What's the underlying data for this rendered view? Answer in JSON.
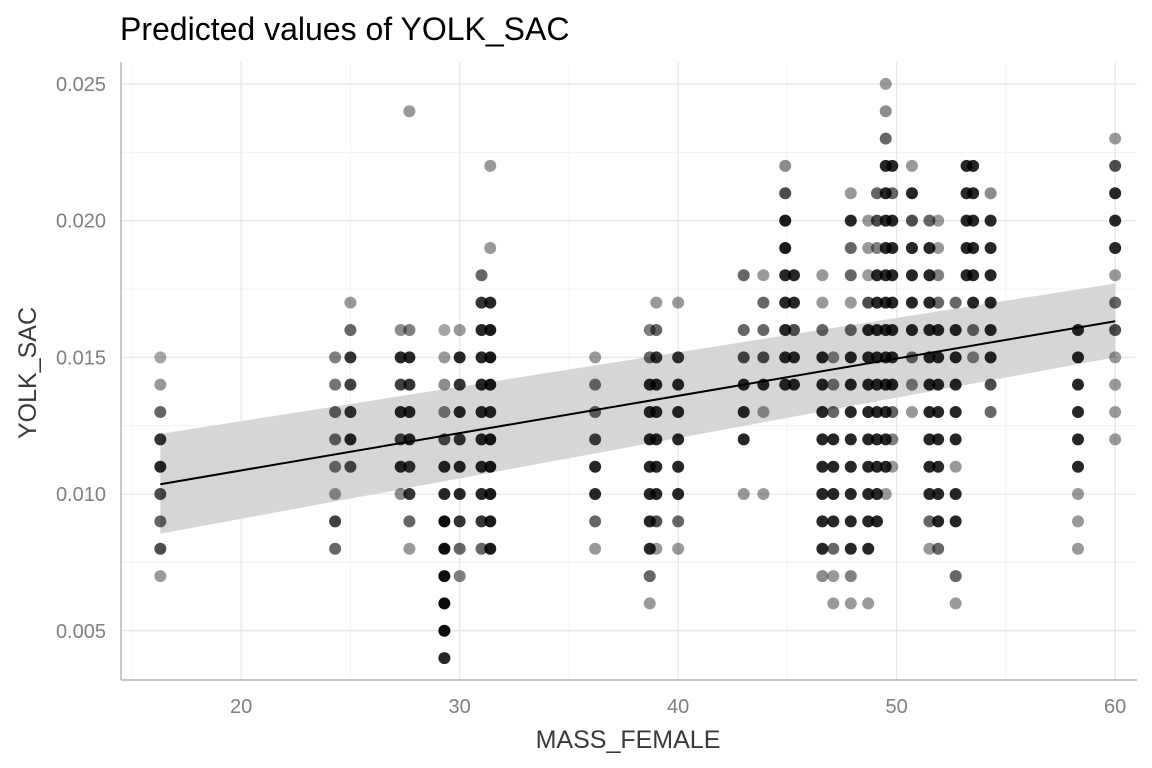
{
  "chart_data": {
    "type": "scatter",
    "title": "Predicted values of YOLK_SAC",
    "xlabel": "MASS_FEMALE",
    "ylabel": "YOLK_SAC",
    "xlim": [
      14.5,
      61.0
    ],
    "ylim": [
      0.0032,
      0.0258
    ],
    "x_ticks": [
      20,
      30,
      40,
      50,
      60
    ],
    "x_tick_labels": [
      "20",
      "30",
      "40",
      "50",
      "60"
    ],
    "y_ticks": [
      0.005,
      0.01,
      0.015,
      0.02,
      0.025
    ],
    "y_tick_labels": [
      "0.005",
      "0.010",
      "0.015",
      "0.020",
      "0.025"
    ],
    "grid": true,
    "point_color": "#000000",
    "band_color": "#d6d6d6",
    "trend": {
      "x": [
        16.3,
        60.0
      ],
      "y": [
        0.01036,
        0.01632
      ],
      "ci_lower": [
        0.00855,
        0.015
      ],
      "ci_upper": [
        0.0122,
        0.0177
      ]
    },
    "columns": [
      {
        "x": 16.3,
        "y": [
          0.007,
          0.008,
          0.009,
          0.01,
          0.011,
          0.012,
          0.013,
          0.014,
          0.015
        ],
        "alpha": [
          0.4,
          0.7,
          0.6,
          0.7,
          0.85,
          0.8,
          0.6,
          0.4,
          0.35
        ]
      },
      {
        "x": 24.3,
        "y": [
          0.008,
          0.009,
          0.01,
          0.011,
          0.012,
          0.013,
          0.014,
          0.015
        ],
        "alpha": [
          0.6,
          0.75,
          0.4,
          0.55,
          0.6,
          0.6,
          0.55,
          0.5
        ]
      },
      {
        "x": 25.0,
        "y": [
          0.011,
          0.012,
          0.013,
          0.014,
          0.015,
          0.016,
          0.017
        ],
        "alpha": [
          0.7,
          0.85,
          0.8,
          0.75,
          0.8,
          0.6,
          0.4
        ]
      },
      {
        "x": 27.3,
        "y": [
          0.01,
          0.011,
          0.012,
          0.013,
          0.014,
          0.015,
          0.016
        ],
        "alpha": [
          0.45,
          0.85,
          0.75,
          0.85,
          0.75,
          0.85,
          0.45
        ]
      },
      {
        "x": 27.7,
        "y": [
          0.008,
          0.009,
          0.01,
          0.011,
          0.012,
          0.013,
          0.014,
          0.015,
          0.016,
          0.024
        ],
        "alpha": [
          0.4,
          0.6,
          0.8,
          0.8,
          0.85,
          0.85,
          0.8,
          0.85,
          0.5,
          0.4
        ]
      },
      {
        "x": 29.3,
        "y": [
          0.004,
          0.005,
          0.006,
          0.007,
          0.008,
          0.009,
          0.01,
          0.011,
          0.012,
          0.013,
          0.014,
          0.015,
          0.016
        ],
        "alpha": [
          0.85,
          0.95,
          0.95,
          0.95,
          0.95,
          0.95,
          0.85,
          0.85,
          0.7,
          0.5,
          0.45,
          0.4,
          0.35
        ]
      },
      {
        "x": 30.0,
        "y": [
          0.007,
          0.008,
          0.009,
          0.01,
          0.011,
          0.012,
          0.013,
          0.014,
          0.015,
          0.016
        ],
        "alpha": [
          0.5,
          0.6,
          0.8,
          0.85,
          0.85,
          0.8,
          0.85,
          0.8,
          0.85,
          0.4
        ]
      },
      {
        "x": 31.0,
        "y": [
          0.008,
          0.009,
          0.01,
          0.011,
          0.012,
          0.013,
          0.014,
          0.015,
          0.016,
          0.017,
          0.018
        ],
        "alpha": [
          0.6,
          0.8,
          0.85,
          0.85,
          0.85,
          0.85,
          0.85,
          0.85,
          0.85,
          0.8,
          0.6
        ]
      },
      {
        "x": 31.4,
        "y": [
          0.008,
          0.009,
          0.01,
          0.011,
          0.012,
          0.013,
          0.014,
          0.015,
          0.016,
          0.017,
          0.019,
          0.022
        ],
        "alpha": [
          0.9,
          0.9,
          0.9,
          0.9,
          0.9,
          0.85,
          0.9,
          0.9,
          0.9,
          0.85,
          0.4,
          0.4
        ]
      },
      {
        "x": 36.2,
        "y": [
          0.008,
          0.009,
          0.01,
          0.011,
          0.012,
          0.013,
          0.014,
          0.015
        ],
        "alpha": [
          0.4,
          0.6,
          0.85,
          0.85,
          0.75,
          0.6,
          0.55,
          0.4
        ]
      },
      {
        "x": 38.7,
        "y": [
          0.006,
          0.007,
          0.008,
          0.009,
          0.01,
          0.011,
          0.012,
          0.013,
          0.014,
          0.015,
          0.016
        ],
        "alpha": [
          0.4,
          0.6,
          0.85,
          0.85,
          0.85,
          0.85,
          0.85,
          0.85,
          0.85,
          0.6,
          0.5
        ]
      },
      {
        "x": 39.0,
        "y": [
          0.008,
          0.009,
          0.01,
          0.011,
          0.012,
          0.013,
          0.014,
          0.015,
          0.016,
          0.017
        ],
        "alpha": [
          0.4,
          0.7,
          0.85,
          0.85,
          0.85,
          0.85,
          0.85,
          0.8,
          0.6,
          0.4
        ]
      },
      {
        "x": 40.0,
        "y": [
          0.008,
          0.009,
          0.01,
          0.011,
          0.012,
          0.013,
          0.014,
          0.015,
          0.017
        ],
        "alpha": [
          0.4,
          0.6,
          0.85,
          0.85,
          0.85,
          0.85,
          0.85,
          0.8,
          0.4
        ]
      },
      {
        "x": 43.0,
        "y": [
          0.01,
          0.012,
          0.013,
          0.014,
          0.015,
          0.016,
          0.018
        ],
        "alpha": [
          0.4,
          0.85,
          0.85,
          0.85,
          0.7,
          0.6,
          0.6
        ]
      },
      {
        "x": 43.9,
        "y": [
          0.01,
          0.013,
          0.014,
          0.015,
          0.016,
          0.017,
          0.018
        ],
        "alpha": [
          0.4,
          0.4,
          0.85,
          0.7,
          0.6,
          0.6,
          0.4
        ]
      },
      {
        "x": 44.9,
        "y": [
          0.014,
          0.015,
          0.016,
          0.017,
          0.018,
          0.019,
          0.02,
          0.021,
          0.022
        ],
        "alpha": [
          0.85,
          0.85,
          0.85,
          0.85,
          0.85,
          0.9,
          0.9,
          0.7,
          0.45
        ]
      },
      {
        "x": 45.3,
        "y": [
          0.014,
          0.015,
          0.016,
          0.017,
          0.018
        ],
        "alpha": [
          0.85,
          0.85,
          0.7,
          0.85,
          0.85
        ]
      },
      {
        "x": 46.6,
        "y": [
          0.007,
          0.008,
          0.009,
          0.01,
          0.011,
          0.012,
          0.013,
          0.014,
          0.015,
          0.016,
          0.017,
          0.018
        ],
        "alpha": [
          0.45,
          0.85,
          0.85,
          0.85,
          0.85,
          0.85,
          0.85,
          0.85,
          0.85,
          0.6,
          0.4,
          0.4
        ]
      },
      {
        "x": 47.1,
        "y": [
          0.006,
          0.007,
          0.008,
          0.009,
          0.01,
          0.011,
          0.012,
          0.013,
          0.014,
          0.015
        ],
        "alpha": [
          0.4,
          0.4,
          0.6,
          0.85,
          0.85,
          0.85,
          0.85,
          0.6,
          0.55,
          0.5
        ]
      },
      {
        "x": 47.9,
        "y": [
          0.006,
          0.007,
          0.008,
          0.009,
          0.01,
          0.011,
          0.012,
          0.013,
          0.014,
          0.015,
          0.016,
          0.017,
          0.018,
          0.019,
          0.02,
          0.021
        ],
        "alpha": [
          0.4,
          0.5,
          0.85,
          0.85,
          0.85,
          0.85,
          0.85,
          0.85,
          0.85,
          0.85,
          0.6,
          0.4,
          0.6,
          0.6,
          0.85,
          0.4
        ]
      },
      {
        "x": 48.7,
        "y": [
          0.006,
          0.008,
          0.009,
          0.01,
          0.011,
          0.012,
          0.013,
          0.014,
          0.015,
          0.016,
          0.017,
          0.018,
          0.019,
          0.02
        ],
        "alpha": [
          0.4,
          0.85,
          0.85,
          0.85,
          0.85,
          0.85,
          0.85,
          0.85,
          0.85,
          0.85,
          0.7,
          0.4,
          0.4,
          0.4
        ]
      },
      {
        "x": 49.1,
        "y": [
          0.009,
          0.01,
          0.011,
          0.012,
          0.013,
          0.014,
          0.015,
          0.016,
          0.017,
          0.018,
          0.019,
          0.02,
          0.021
        ],
        "alpha": [
          0.85,
          0.85,
          0.85,
          0.85,
          0.85,
          0.85,
          0.85,
          0.85,
          0.85,
          0.85,
          0.5,
          0.7,
          0.6
        ]
      },
      {
        "x": 49.5,
        "y": [
          0.01,
          0.011,
          0.012,
          0.013,
          0.014,
          0.015,
          0.016,
          0.017,
          0.018,
          0.019,
          0.02,
          0.021,
          0.022,
          0.023,
          0.024,
          0.025
        ],
        "alpha": [
          0.4,
          0.85,
          0.85,
          0.85,
          0.85,
          0.85,
          0.85,
          0.85,
          0.85,
          0.85,
          0.85,
          0.85,
          0.85,
          0.6,
          0.45,
          0.4
        ]
      },
      {
        "x": 49.8,
        "y": [
          0.011,
          0.012,
          0.013,
          0.014,
          0.015,
          0.016,
          0.017,
          0.018,
          0.019,
          0.02,
          0.021,
          0.022
        ],
        "alpha": [
          0.4,
          0.5,
          0.6,
          0.85,
          0.85,
          0.85,
          0.85,
          0.85,
          0.85,
          0.85,
          0.6,
          0.85
        ]
      },
      {
        "x": 50.7,
        "y": [
          0.013,
          0.014,
          0.015,
          0.016,
          0.017,
          0.018,
          0.019,
          0.02,
          0.021,
          0.022
        ],
        "alpha": [
          0.4,
          0.5,
          0.6,
          0.85,
          0.85,
          0.85,
          0.85,
          0.7,
          0.85,
          0.4
        ]
      },
      {
        "x": 51.5,
        "y": [
          0.008,
          0.009,
          0.01,
          0.011,
          0.012,
          0.013,
          0.014,
          0.015,
          0.016,
          0.017,
          0.018,
          0.019,
          0.02
        ],
        "alpha": [
          0.4,
          0.6,
          0.85,
          0.85,
          0.85,
          0.85,
          0.85,
          0.85,
          0.85,
          0.85,
          0.85,
          0.85,
          0.6
        ]
      },
      {
        "x": 51.9,
        "y": [
          0.008,
          0.009,
          0.01,
          0.011,
          0.012,
          0.013,
          0.014,
          0.015,
          0.016,
          0.017,
          0.018,
          0.019,
          0.02
        ],
        "alpha": [
          0.6,
          0.85,
          0.85,
          0.85,
          0.85,
          0.85,
          0.85,
          0.85,
          0.85,
          0.6,
          0.5,
          0.4,
          0.4
        ]
      },
      {
        "x": 52.7,
        "y": [
          0.006,
          0.007,
          0.009,
          0.01,
          0.011,
          0.012,
          0.013,
          0.014,
          0.015,
          0.016,
          0.017
        ],
        "alpha": [
          0.4,
          0.6,
          0.85,
          0.85,
          0.4,
          0.85,
          0.85,
          0.85,
          0.85,
          0.85,
          0.6
        ]
      },
      {
        "x": 53.2,
        "y": [
          0.018,
          0.019,
          0.02,
          0.021,
          0.022
        ],
        "alpha": [
          0.85,
          0.85,
          0.85,
          0.85,
          0.85
        ]
      },
      {
        "x": 53.5,
        "y": [
          0.015,
          0.016,
          0.017,
          0.018,
          0.019,
          0.02,
          0.021,
          0.022
        ],
        "alpha": [
          0.5,
          0.6,
          0.85,
          0.85,
          0.85,
          0.85,
          0.85,
          0.85
        ]
      },
      {
        "x": 54.3,
        "y": [
          0.013,
          0.014,
          0.015,
          0.016,
          0.017,
          0.018,
          0.019,
          0.02,
          0.021
        ],
        "alpha": [
          0.6,
          0.7,
          0.85,
          0.85,
          0.85,
          0.85,
          0.85,
          0.85,
          0.45
        ]
      },
      {
        "x": 58.3,
        "y": [
          0.008,
          0.009,
          0.01,
          0.011,
          0.012,
          0.013,
          0.014,
          0.015,
          0.016
        ],
        "alpha": [
          0.4,
          0.4,
          0.4,
          0.85,
          0.85,
          0.85,
          0.85,
          0.85,
          0.85
        ]
      },
      {
        "x": 60.0,
        "y": [
          0.012,
          0.013,
          0.014,
          0.015,
          0.016,
          0.017,
          0.018,
          0.019,
          0.02,
          0.021,
          0.022,
          0.023
        ],
        "alpha": [
          0.4,
          0.4,
          0.4,
          0.4,
          0.7,
          0.6,
          0.4,
          0.85,
          0.85,
          0.85,
          0.7,
          0.4
        ]
      }
    ]
  }
}
